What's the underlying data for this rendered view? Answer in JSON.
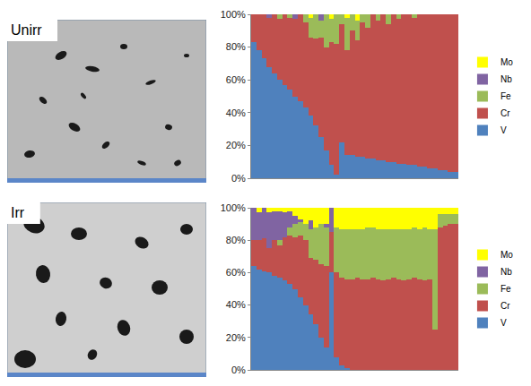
{
  "micrographs": [
    {
      "label": "Unirr"
    },
    {
      "label": "Irr"
    }
  ],
  "chart_data": [
    {
      "type": "bar",
      "stacked": true,
      "grid": false,
      "legend": "right",
      "tick_labels": "y",
      "categories": [
        null,
        null,
        null,
        null,
        null,
        null,
        null,
        null,
        null,
        null,
        null,
        null,
        null,
        null,
        null,
        null,
        null,
        null,
        null,
        null,
        null,
        null,
        null,
        null,
        null,
        null,
        null,
        null,
        null,
        null,
        null,
        null,
        null,
        null,
        null,
        null,
        null,
        null,
        null,
        null
      ],
      "ylim": [
        0,
        100
      ],
      "yticks": [
        {
          "value": 0,
          "label": "0%"
        },
        {
          "value": 20,
          "label": "20%"
        },
        {
          "value": 40,
          "label": "40%"
        },
        {
          "value": 60,
          "label": "60%"
        },
        {
          "value": 80,
          "label": "80%"
        },
        {
          "value": 100,
          "label": "100%"
        }
      ],
      "series": [
        {
          "name": "V",
          "color": "#4f81bd",
          "values": [
            83,
            78,
            73,
            68,
            64,
            60,
            57,
            54,
            50,
            47,
            43,
            38,
            32,
            25,
            17,
            8,
            2,
            22,
            14,
            14,
            13,
            13,
            12,
            12,
            11,
            11,
            10,
            10,
            9,
            9,
            8,
            8,
            7,
            7,
            6,
            6,
            5,
            5,
            4,
            4
          ]
        },
        {
          "name": "Cr",
          "color": "#c0504d",
          "values": [
            17,
            22,
            27,
            30,
            36,
            37,
            43,
            44,
            47,
            53,
            52,
            48,
            53,
            61,
            63,
            75,
            80,
            72,
            64,
            76,
            71,
            82,
            80,
            88,
            85,
            89,
            84,
            90,
            88,
            91,
            92,
            90,
            93,
            93,
            94,
            94,
            95,
            95,
            96,
            96
          ]
        },
        {
          "name": "Fe",
          "color": "#9bbb59",
          "values": [
            0,
            0,
            0,
            0,
            0,
            3,
            0,
            2,
            0,
            0,
            5,
            12,
            15,
            10,
            20,
            14,
            18,
            6,
            20,
            10,
            12,
            5,
            8,
            0,
            4,
            0,
            6,
            0,
            3,
            0,
            0,
            2,
            0,
            0,
            0,
            0,
            0,
            0,
            0,
            0
          ]
        },
        {
          "name": "Nb",
          "color": "#8064a2",
          "values": [
            0,
            0,
            0,
            2,
            0,
            0,
            0,
            0,
            3,
            0,
            0,
            0,
            0,
            4,
            0,
            0,
            0,
            0,
            0,
            0,
            0,
            0,
            0,
            0,
            0,
            0,
            0,
            0,
            0,
            0,
            0,
            0,
            0,
            0,
            0,
            0,
            0,
            0,
            0,
            0
          ]
        },
        {
          "name": "Mo",
          "color": "#ffff00",
          "values": [
            0,
            0,
            0,
            0,
            0,
            0,
            0,
            0,
            0,
            0,
            0,
            2,
            0,
            0,
            0,
            3,
            0,
            0,
            2,
            0,
            4,
            0,
            0,
            0,
            0,
            0,
            0,
            0,
            0,
            0,
            0,
            0,
            0,
            0,
            0,
            0,
            0,
            0,
            0,
            0
          ]
        }
      ]
    },
    {
      "type": "bar",
      "stacked": true,
      "grid": false,
      "legend": "right",
      "tick_labels": "y",
      "categories": [
        null,
        null,
        null,
        null,
        null,
        null,
        null,
        null,
        null,
        null,
        null,
        null,
        null,
        null,
        null,
        null,
        null,
        null,
        null,
        null,
        null,
        null,
        null,
        null,
        null,
        null,
        null,
        null,
        null,
        null,
        null,
        null,
        null,
        null,
        null,
        null,
        null,
        null,
        null,
        null
      ],
      "ylim": [
        0,
        100
      ],
      "yticks": [
        {
          "value": 0,
          "label": "0%"
        },
        {
          "value": 20,
          "label": "20%"
        },
        {
          "value": 40,
          "label": "40%"
        },
        {
          "value": 60,
          "label": "60%"
        },
        {
          "value": 80,
          "label": "80%"
        },
        {
          "value": 100,
          "label": "100%"
        }
      ],
      "series": [
        {
          "name": "V",
          "color": "#4f81bd",
          "values": [
            64,
            62,
            61,
            60,
            58,
            57,
            55,
            53,
            50,
            45,
            40,
            34,
            28,
            20,
            14,
            60,
            8,
            3,
            1,
            0,
            0,
            0,
            0,
            0,
            0,
            0,
            0,
            0,
            0,
            0,
            0,
            0,
            0,
            0,
            0,
            0,
            0,
            0,
            0,
            0
          ]
        },
        {
          "name": "Cr",
          "color": "#c0504d",
          "values": [
            16,
            18,
            20,
            15,
            22,
            20,
            27,
            30,
            32,
            38,
            40,
            35,
            40,
            45,
            50,
            25,
            52,
            54,
            55,
            56,
            57,
            56,
            56,
            57,
            56,
            55,
            56,
            57,
            56,
            55,
            56,
            57,
            56,
            55,
            56,
            25,
            88,
            89,
            90,
            90
          ]
        },
        {
          "name": "Fe",
          "color": "#9bbb59",
          "values": [
            0,
            0,
            0,
            0,
            0,
            3,
            0,
            5,
            8,
            8,
            10,
            18,
            20,
            25,
            24,
            0,
            28,
            30,
            31,
            31,
            30,
            31,
            32,
            31,
            31,
            32,
            31,
            30,
            31,
            32,
            31,
            31,
            31,
            33,
            31,
            62,
            8,
            7,
            6,
            6
          ]
        },
        {
          "name": "Nb",
          "color": "#8064a2",
          "values": [
            20,
            17,
            19,
            22,
            18,
            18,
            15,
            10,
            5,
            2,
            0,
            5,
            0,
            0,
            2,
            15,
            0,
            0,
            0,
            0,
            0,
            0,
            0,
            0,
            0,
            0,
            0,
            0,
            0,
            0,
            0,
            0,
            0,
            0,
            0,
            0,
            0,
            0,
            0,
            0
          ]
        },
        {
          "name": "Mo",
          "color": "#ffff00",
          "values": [
            0,
            3,
            0,
            3,
            2,
            2,
            3,
            2,
            5,
            7,
            10,
            8,
            12,
            10,
            10,
            0,
            12,
            13,
            13,
            13,
            13,
            13,
            12,
            12,
            13,
            13,
            13,
            13,
            13,
            13,
            13,
            12,
            13,
            12,
            13,
            13,
            4,
            4,
            4,
            4
          ]
        }
      ]
    }
  ]
}
